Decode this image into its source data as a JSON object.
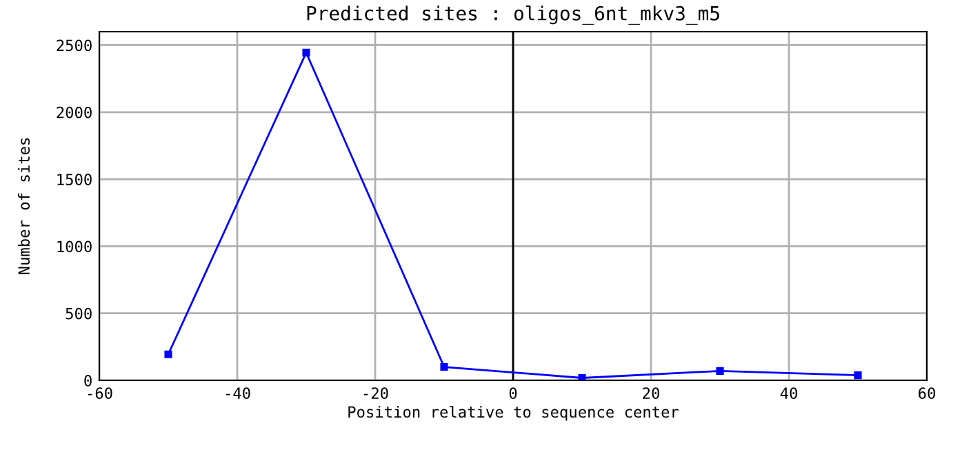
{
  "chart_data": {
    "type": "line",
    "title": "Predicted sites : oligos_6nt_mkv3_m5",
    "xlabel": "Position relative to sequence center",
    "ylabel": "Number of sites",
    "x": [
      -50,
      -30,
      -10,
      10,
      30,
      50
    ],
    "series": [
      {
        "color": "#0000ff",
        "values": [
          194,
          2444,
          100,
          18,
          70,
          38
        ]
      }
    ],
    "xlim": [
      -60,
      60
    ],
    "xticks": [
      -60,
      -40,
      -20,
      0,
      20,
      40,
      60
    ],
    "ylim": [
      0,
      2600
    ],
    "yticks": [
      0,
      500,
      1000,
      1500,
      2000,
      2500
    ],
    "ref_lines": [
      {
        "axis": "x",
        "value": 0,
        "color": "#000000"
      }
    ],
    "grid": true,
    "marker": "square",
    "line_style": "solid",
    "legend": false
  }
}
